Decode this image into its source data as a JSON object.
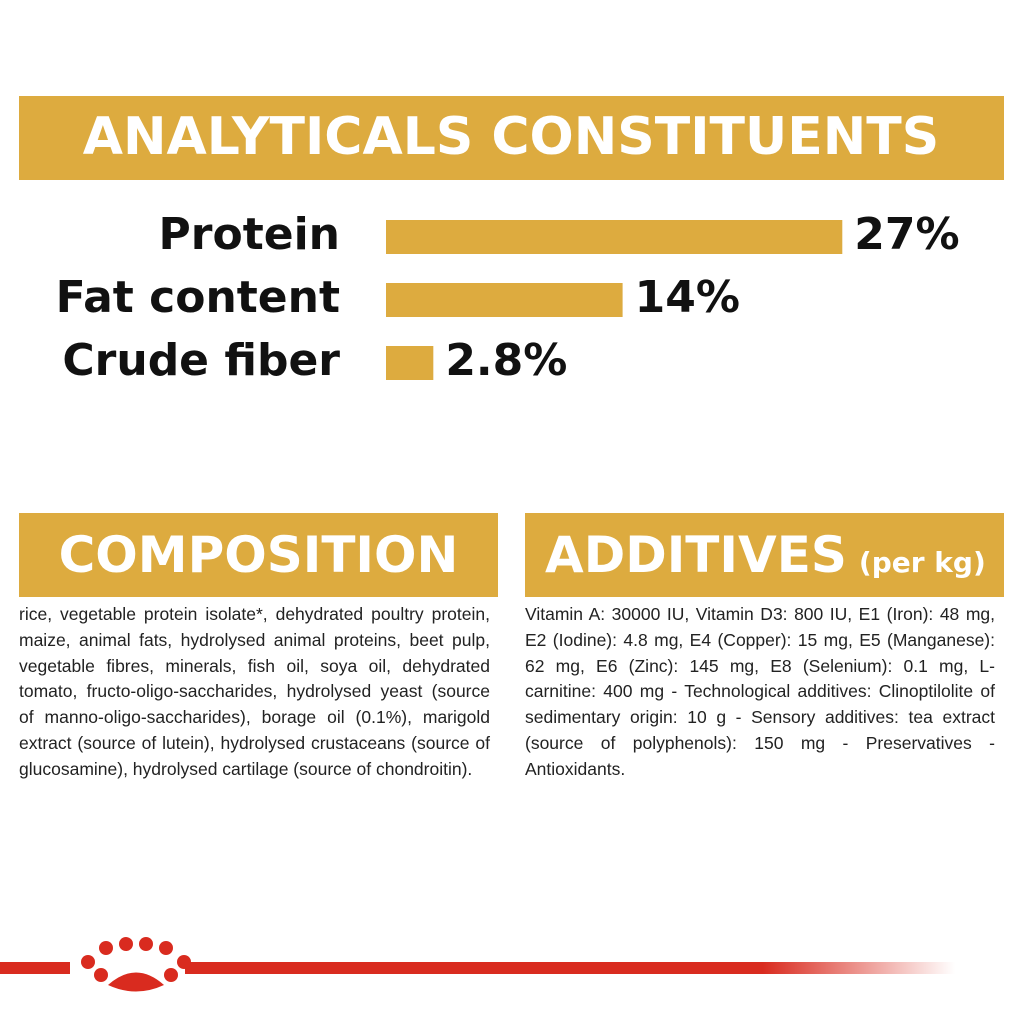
{
  "chart_data": {
    "type": "bar",
    "orientation": "horizontal",
    "title": "ANALYTICALS CONSTITUENTS",
    "categories": [
      "Protein",
      "Fat content",
      "Crude fiber"
    ],
    "values": [
      27,
      14,
      2.8
    ],
    "value_labels": [
      "27%",
      "14%",
      "2.8%"
    ],
    "color": "#ddab3f"
  },
  "composition": {
    "title": "COMPOSITION",
    "text": "rice, vegetable protein isolate*, dehydrated poultry protein, maize, animal fats, hydrolysed animal proteins, beet pulp, vegetable fibres, minerals, fish oil, soya oil, dehydrated tomato, fructo-oligo-saccharides, hydrolysed yeast (source of manno-oligo-saccharides), borage oil (0.1%), marigold extract (source of lutein), hydrolysed crustaceans (source of glucosamine), hydrolysed cartilage (source of chondroitin)."
  },
  "additives": {
    "title": "ADDITIVES",
    "subtitle": "(per kg)",
    "text": "Vitamin A: 30000 IU, Vitamin D3: 800 IU, E1 (Iron): 48 mg, E2 (Iodine): 4.8 mg, E4 (Copper): 15 mg, E5 (Manganese): 62 mg, E6 (Zinc): 145 mg, E8 (Selenium): 0.1 mg, L-carnitine: 400 mg - Technological additives: Clinoptilolite of sedimentary origin: 10 g - Sensory additives: tea extract (source of polyphenols): 150 mg - Preservatives - Antioxidants."
  }
}
